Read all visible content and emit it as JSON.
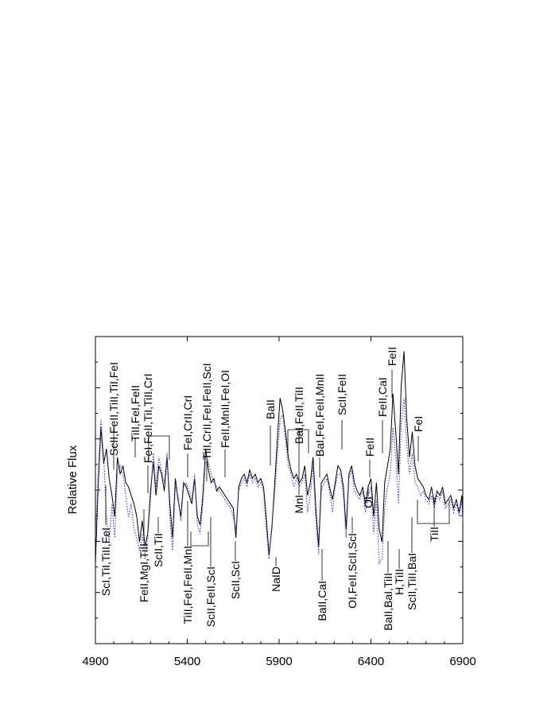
{
  "chart_data": {
    "type": "line",
    "title": "",
    "xlabel": "",
    "ylabel": "Relative Flux",
    "xlim": [
      4900,
      6900
    ],
    "x_ticks": [
      "4900",
      "5400",
      "5900",
      "6400",
      "6900"
    ],
    "legend": "none",
    "grid": false,
    "series": [
      {
        "style": "solid",
        "color": "#000000",
        "x": [
          4900,
          4915,
          4930,
          4945,
          4960,
          4975,
          4990,
          5005,
          5020,
          5035,
          5050,
          5065,
          5080,
          5095,
          5110,
          5125,
          5140,
          5155,
          5170,
          5185,
          5200,
          5215,
          5230,
          5245,
          5260,
          5275,
          5290,
          5305,
          5320,
          5335,
          5350,
          5365,
          5380,
          5395,
          5410,
          5425,
          5440,
          5455,
          5470,
          5485,
          5500,
          5515,
          5530,
          5545,
          5560,
          5575,
          5590,
          5605,
          5620,
          5635,
          5650,
          5665,
          5680,
          5695,
          5710,
          5725,
          5740,
          5755,
          5770,
          5785,
          5800,
          5815,
          5830,
          5845,
          5860,
          5875,
          5890,
          5905,
          5920,
          5935,
          5950,
          5965,
          5980,
          5995,
          6010,
          6025,
          6040,
          6055,
          6070,
          6085,
          6100,
          6115,
          6130,
          6145,
          6160,
          6175,
          6190,
          6205,
          6220,
          6235,
          6250,
          6265,
          6280,
          6295,
          6310,
          6325,
          6340,
          6355,
          6370,
          6385,
          6400,
          6415,
          6430,
          6445,
          6460,
          6475,
          6490,
          6505,
          6520,
          6535,
          6550,
          6565,
          6580,
          6595,
          6610,
          6625,
          6640,
          6655,
          6670,
          6685,
          6700,
          6715,
          6730,
          6745,
          6760,
          6775,
          6790,
          6805,
          6820,
          6835,
          6850,
          6865,
          6880,
          6895,
          6900
        ],
        "y": [
          0.08,
          0.45,
          0.72,
          0.55,
          0.62,
          0.48,
          0.4,
          0.3,
          0.58,
          0.5,
          0.54,
          0.46,
          0.44,
          0.4,
          0.36,
          0.3,
          0.18,
          0.28,
          0.16,
          0.22,
          0.42,
          0.56,
          0.4,
          0.54,
          0.5,
          0.42,
          0.58,
          0.36,
          0.2,
          0.48,
          0.38,
          0.3,
          0.46,
          0.44,
          0.4,
          0.36,
          0.48,
          0.3,
          0.26,
          0.4,
          0.62,
          0.52,
          0.46,
          0.48,
          0.42,
          0.44,
          0.42,
          0.4,
          0.38,
          0.36,
          0.34,
          0.2,
          0.44,
          0.48,
          0.5,
          0.46,
          0.52,
          0.48,
          0.5,
          0.46,
          0.48,
          0.44,
          0.3,
          0.12,
          0.24,
          0.44,
          0.66,
          0.86,
          0.8,
          0.7,
          0.58,
          0.52,
          0.48,
          0.5,
          0.46,
          0.48,
          0.54,
          0.4,
          0.46,
          0.58,
          0.34,
          0.16,
          0.46,
          0.48,
          0.5,
          0.44,
          0.38,
          0.46,
          0.54,
          0.52,
          0.44,
          0.24,
          0.5,
          0.54,
          0.46,
          0.42,
          0.4,
          0.44,
          0.36,
          0.44,
          0.48,
          0.3,
          0.46,
          0.24,
          0.18,
          0.46,
          0.54,
          0.62,
          0.88,
          0.7,
          0.5,
          0.92,
          1.08,
          0.76,
          0.58,
          0.7,
          0.54,
          0.48,
          0.46,
          0.44,
          0.4,
          0.38,
          0.44,
          0.36,
          0.42,
          0.4,
          0.44,
          0.36,
          0.38,
          0.4,
          0.34,
          0.38,
          0.32,
          0.4,
          0.3
        ]
      },
      {
        "style": "dotted",
        "color": "#3a3ad0",
        "x": [
          4900,
          4915,
          4930,
          4945,
          4960,
          4975,
          4990,
          5005,
          5020,
          5035,
          5050,
          5065,
          5080,
          5095,
          5110,
          5125,
          5140,
          5155,
          5170,
          5185,
          5200,
          5215,
          5230,
          5245,
          5260,
          5275,
          5290,
          5305,
          5320,
          5335,
          5350,
          5365,
          5380,
          5395,
          5410,
          5425,
          5440,
          5455,
          5470,
          5485,
          5500,
          5515,
          5530,
          5545,
          5560,
          5575,
          5590,
          5605,
          5620,
          5635,
          5650,
          5665,
          5680,
          5695,
          5710,
          5725,
          5740,
          5755,
          5770,
          5785,
          5800,
          5815,
          5830,
          5845,
          5860,
          5875,
          5890,
          5905,
          5920,
          5935,
          5950,
          5965,
          5980,
          5995,
          6010,
          6025,
          6040,
          6055,
          6070,
          6085,
          6100,
          6115,
          6130,
          6145,
          6160,
          6175,
          6190,
          6205,
          6220,
          6235,
          6250,
          6265,
          6280,
          6295,
          6310,
          6325,
          6340,
          6355,
          6370,
          6385,
          6400,
          6415,
          6430,
          6445,
          6460,
          6475,
          6490,
          6505,
          6520,
          6535,
          6550,
          6565,
          6580,
          6595,
          6610,
          6625,
          6640,
          6655,
          6670,
          6685,
          6700,
          6715,
          6730,
          6745,
          6760,
          6775,
          6790,
          6805,
          6820,
          6835,
          6850,
          6865,
          6880,
          6895,
          6900
        ],
        "y": [
          0.2,
          0.5,
          0.76,
          0.58,
          0.3,
          0.18,
          0.36,
          0.2,
          0.52,
          0.54,
          0.5,
          0.4,
          0.3,
          0.36,
          0.24,
          0.2,
          0.14,
          0.22,
          0.1,
          0.2,
          0.38,
          0.6,
          0.44,
          0.58,
          0.52,
          0.46,
          0.6,
          0.3,
          0.14,
          0.44,
          0.4,
          0.28,
          0.44,
          0.46,
          0.42,
          0.38,
          0.5,
          0.26,
          0.22,
          0.36,
          0.58,
          0.56,
          0.5,
          0.46,
          0.44,
          0.42,
          0.4,
          0.38,
          0.36,
          0.34,
          0.3,
          0.24,
          0.42,
          0.46,
          0.48,
          0.44,
          0.5,
          0.46,
          0.48,
          0.44,
          0.46,
          0.42,
          0.24,
          0.1,
          0.26,
          0.4,
          0.58,
          0.76,
          0.78,
          0.66,
          0.54,
          0.5,
          0.44,
          0.48,
          0.44,
          0.46,
          0.5,
          0.32,
          0.4,
          0.54,
          0.28,
          0.12,
          0.42,
          0.46,
          0.48,
          0.42,
          0.32,
          0.44,
          0.5,
          0.5,
          0.4,
          0.2,
          0.48,
          0.52,
          0.42,
          0.4,
          0.38,
          0.42,
          0.32,
          0.4,
          0.44,
          0.22,
          0.38,
          0.08,
          0.1,
          0.34,
          0.44,
          0.5,
          0.72,
          0.58,
          0.36,
          0.74,
          0.86,
          0.64,
          0.5,
          0.6,
          0.46,
          0.44,
          0.4,
          0.42,
          0.38,
          0.36,
          0.4,
          0.34,
          0.4,
          0.38,
          0.42,
          0.34,
          0.36,
          0.38,
          0.32,
          0.36,
          0.3,
          0.38,
          0.28
        ]
      }
    ],
    "annotations": [
      {
        "text": "ScII,FeII,TiII,TiI,FeI",
        "position": "above"
      },
      {
        "text": "TiII,FeI,FeII",
        "position": "above"
      },
      {
        "text": "FeI,FeII,TiI,TiII,CrI",
        "position": "above"
      },
      {
        "text": "FeI,CrII,CrI",
        "position": "above"
      },
      {
        "text": "TiII,CrII,FeI,FeII,ScI",
        "position": "above"
      },
      {
        "text": "FeII,MnII,FeI,OI",
        "position": "above"
      },
      {
        "text": "BaII",
        "position": "above"
      },
      {
        "text": "BaI,FeII,TiII",
        "position": "above"
      },
      {
        "text": "BaI,FeI,FeII,MnII",
        "position": "above"
      },
      {
        "text": "ScII,FeII",
        "position": "above"
      },
      {
        "text": "FeII",
        "position": "above"
      },
      {
        "text": "FeII,CaI",
        "position": "above"
      },
      {
        "text": "FeII",
        "position": "above"
      },
      {
        "text": "FeI",
        "position": "above"
      },
      {
        "text": "ScI,TiI,TiII,FeI",
        "position": "below"
      },
      {
        "text": "FeII,MgI,TiII",
        "position": "below"
      },
      {
        "text": "ScII,TiI",
        "position": "below"
      },
      {
        "text": "TiII,FeI,FeII,MnI",
        "position": "below"
      },
      {
        "text": "ScII,FeII,ScI",
        "position": "below"
      },
      {
        "text": "ScII,ScI",
        "position": "below"
      },
      {
        "text": "NaID",
        "position": "below"
      },
      {
        "text": "MnI",
        "position": "below"
      },
      {
        "text": "BaII,CaI",
        "position": "below"
      },
      {
        "text": "OI,FeII,ScII,ScI",
        "position": "below"
      },
      {
        "text": "OI",
        "position": "below"
      },
      {
        "text": "BaII,BaI,TiII",
        "position": "below"
      },
      {
        "text": "H,TiII",
        "position": "below"
      },
      {
        "text": "ScII,TiII,BaI",
        "position": "below"
      },
      {
        "text": "TiII",
        "position": "below"
      }
    ]
  }
}
